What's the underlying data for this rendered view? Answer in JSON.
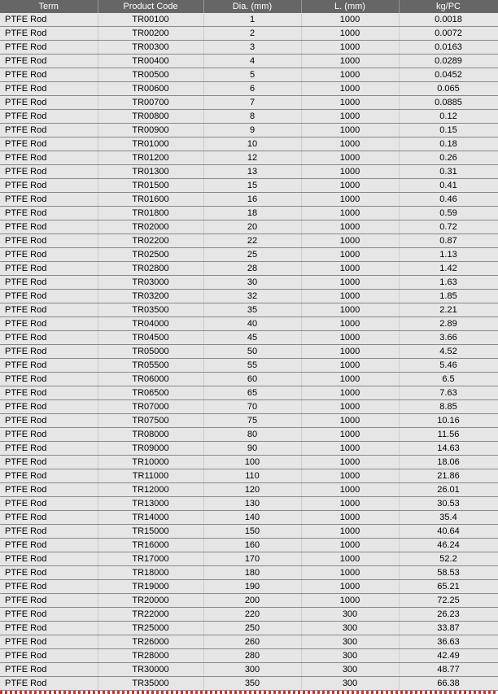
{
  "table": {
    "columns": [
      "Term",
      "Product Code",
      "Dia. (mm)",
      "L. (mm)",
      "kg/PC"
    ],
    "header_bg": "#666666",
    "header_fg": "#ffffff",
    "row_bg": "#e6e6e6",
    "row_fg": "#000000",
    "border_color": "#888888",
    "font_size": 11,
    "rows": [
      [
        "PTFE Rod",
        "TR00100",
        "1",
        "1000",
        "0.0018"
      ],
      [
        "PTFE Rod",
        "TR00200",
        "2",
        "1000",
        "0.0072"
      ],
      [
        "PTFE Rod",
        "TR00300",
        "3",
        "1000",
        "0.0163"
      ],
      [
        "PTFE Rod",
        "TR00400",
        "4",
        "1000",
        "0.0289"
      ],
      [
        "PTFE Rod",
        "TR00500",
        "5",
        "1000",
        "0.0452"
      ],
      [
        "PTFE Rod",
        "TR00600",
        "6",
        "1000",
        "0.065"
      ],
      [
        "PTFE Rod",
        "TR00700",
        "7",
        "1000",
        "0.0885"
      ],
      [
        "PTFE Rod",
        "TR00800",
        "8",
        "1000",
        "0.12"
      ],
      [
        "PTFE Rod",
        "TR00900",
        "9",
        "1000",
        "0.15"
      ],
      [
        "PTFE Rod",
        "TR01000",
        "10",
        "1000",
        "0.18"
      ],
      [
        "PTFE Rod",
        "TR01200",
        "12",
        "1000",
        "0.26"
      ],
      [
        "PTFE Rod",
        "TR01300",
        "13",
        "1000",
        "0.31"
      ],
      [
        "PTFE Rod",
        "TR01500",
        "15",
        "1000",
        "0.41"
      ],
      [
        "PTFE Rod",
        "TR01600",
        "16",
        "1000",
        "0.46"
      ],
      [
        "PTFE Rod",
        "TR01800",
        "18",
        "1000",
        "0.59"
      ],
      [
        "PTFE Rod",
        "TR02000",
        "20",
        "1000",
        "0.72"
      ],
      [
        "PTFE Rod",
        "TR02200",
        "22",
        "1000",
        "0.87"
      ],
      [
        "PTFE Rod",
        "TR02500",
        "25",
        "1000",
        "1.13"
      ],
      [
        "PTFE Rod",
        "TR02800",
        "28",
        "1000",
        "1.42"
      ],
      [
        "PTFE Rod",
        "TR03000",
        "30",
        "1000",
        "1.63"
      ],
      [
        "PTFE Rod",
        "TR03200",
        "32",
        "1000",
        "1.85"
      ],
      [
        "PTFE Rod",
        "TR03500",
        "35",
        "1000",
        "2.21"
      ],
      [
        "PTFE Rod",
        "TR04000",
        "40",
        "1000",
        "2.89"
      ],
      [
        "PTFE Rod",
        "TR04500",
        "45",
        "1000",
        "3.66"
      ],
      [
        "PTFE Rod",
        "TR05000",
        "50",
        "1000",
        "4.52"
      ],
      [
        "PTFE Rod",
        "TR05500",
        "55",
        "1000",
        "5.46"
      ],
      [
        "PTFE Rod",
        "TR06000",
        "60",
        "1000",
        "6.5"
      ],
      [
        "PTFE Rod",
        "TR06500",
        "65",
        "1000",
        "7.63"
      ],
      [
        "PTFE Rod",
        "TR07000",
        "70",
        "1000",
        "8.85"
      ],
      [
        "PTFE Rod",
        "TR07500",
        "75",
        "1000",
        "10.16"
      ],
      [
        "PTFE Rod",
        "TR08000",
        "80",
        "1000",
        "11.56"
      ],
      [
        "PTFE Rod",
        "TR09000",
        "90",
        "1000",
        "14.63"
      ],
      [
        "PTFE Rod",
        "TR10000",
        "100",
        "1000",
        "18.06"
      ],
      [
        "PTFE Rod",
        "TR11000",
        "110",
        "1000",
        "21.86"
      ],
      [
        "PTFE Rod",
        "TR12000",
        "120",
        "1000",
        "26.01"
      ],
      [
        "PTFE Rod",
        "TR13000",
        "130",
        "1000",
        "30.53"
      ],
      [
        "PTFE Rod",
        "TR14000",
        "140",
        "1000",
        "35.4"
      ],
      [
        "PTFE Rod",
        "TR15000",
        "150",
        "1000",
        "40.64"
      ],
      [
        "PTFE Rod",
        "TR16000",
        "160",
        "1000",
        "46.24"
      ],
      [
        "PTFE Rod",
        "TR17000",
        "170",
        "1000",
        "52.2"
      ],
      [
        "PTFE Rod",
        "TR18000",
        "180",
        "1000",
        "58.53"
      ],
      [
        "PTFE Rod",
        "TR19000",
        "190",
        "1000",
        "65.21"
      ],
      [
        "PTFE Rod",
        "TR20000",
        "200",
        "1000",
        "72.25"
      ],
      [
        "PTFE Rod",
        "TR22000",
        "220",
        "300",
        "26.23"
      ],
      [
        "PTFE Rod",
        "TR25000",
        "250",
        "300",
        "33.87"
      ],
      [
        "PTFE Rod",
        "TR26000",
        "260",
        "300",
        "36.63"
      ],
      [
        "PTFE Rod",
        "TR28000",
        "280",
        "300",
        "42.49"
      ],
      [
        "PTFE Rod",
        "TR30000",
        "300",
        "300",
        "48.77"
      ],
      [
        "PTFE Rod",
        "TR35000",
        "350",
        "300",
        "66.38"
      ]
    ]
  }
}
